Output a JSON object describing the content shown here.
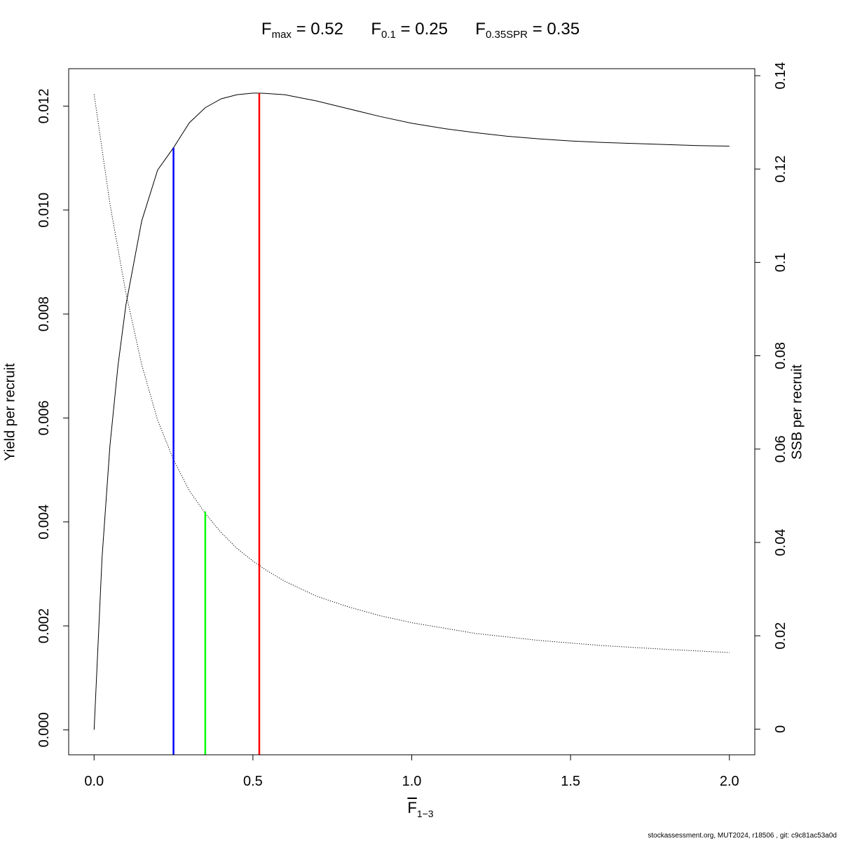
{
  "title": {
    "fmax_main": "F",
    "fmax_sub": "max",
    "fmax_value": "= 0.52",
    "f01_main": "F",
    "f01_sub": "0.1",
    "f01_value": "= 0.25",
    "fspr_main": "F",
    "fspr_sub": "0.35SPR",
    "fspr_value": "= 0.35"
  },
  "footer": "stockassessment.org, MUT2024, r18506 , git: c9c81ac53a0d",
  "chart_data": {
    "type": "line",
    "xlabel": {
      "main": "F",
      "sub": "1−3"
    },
    "ylabel_left": "Yield per recruit",
    "ylabel_right": "SSB per recruit",
    "xlim": [
      -0.08,
      2.08
    ],
    "ylim_left": [
      -0.00048,
      0.01272
    ],
    "ylim_right": [
      -0.0055,
      0.1415
    ],
    "x_ticks": [
      0.0,
      0.5,
      1.0,
      1.5,
      2.0
    ],
    "x_tick_labels": [
      "0.0",
      "0.5",
      "1.0",
      "1.5",
      "2.0"
    ],
    "y_left_ticks": [
      0.0,
      0.002,
      0.004,
      0.006,
      0.008,
      0.01,
      0.012
    ],
    "y_left_tick_labels": [
      "0.000",
      "0.002",
      "0.004",
      "0.006",
      "0.008",
      "0.010",
      "0.012"
    ],
    "y_right_ticks": [
      0,
      0.02,
      0.04,
      0.06,
      0.08,
      0.1,
      0.12,
      0.14
    ],
    "y_right_tick_labels": [
      "0",
      "0.02",
      "0.04",
      "0.06",
      "0.08",
      "0.1",
      "0.12",
      "0.14"
    ],
    "series": [
      {
        "style": "solid",
        "color": "#000000",
        "axis": "left",
        "x": [
          0.0,
          0.025,
          0.05,
          0.075,
          0.1,
          0.15,
          0.2,
          0.25,
          0.3,
          0.35,
          0.4,
          0.45,
          0.5,
          0.52,
          0.55,
          0.6,
          0.7,
          0.8,
          0.9,
          1.0,
          1.1,
          1.2,
          1.3,
          1.4,
          1.5,
          1.6,
          1.7,
          1.8,
          1.9,
          2.0
        ],
        "y": [
          0.0,
          0.00331,
          0.00547,
          0.007,
          0.00817,
          0.00979,
          0.01077,
          0.0112,
          0.01168,
          0.01197,
          0.01214,
          0.01222,
          0.01225,
          0.01225,
          0.01224,
          0.01222,
          0.0121,
          0.01195,
          0.0118,
          0.01167,
          0.01157,
          0.01149,
          0.01142,
          0.01137,
          0.01133,
          0.0113,
          0.01128,
          0.01126,
          0.01124,
          0.01123
        ]
      },
      {
        "style": "dotted",
        "color": "#000000",
        "axis": "right",
        "x": [
          0.0,
          0.05,
          0.1,
          0.15,
          0.2,
          0.25,
          0.3,
          0.35,
          0.4,
          0.45,
          0.5,
          0.55,
          0.6,
          0.7,
          0.8,
          0.9,
          1.0,
          1.2,
          1.4,
          1.6,
          1.8,
          2.0
        ],
        "y": [
          0.136,
          0.1125,
          0.0935,
          0.0781,
          0.0662,
          0.0577,
          0.0511,
          0.0462,
          0.0421,
          0.0387,
          0.036,
          0.0337,
          0.0317,
          0.0285,
          0.0262,
          0.0243,
          0.0228,
          0.0205,
          0.019,
          0.0179,
          0.0171,
          0.0164
        ]
      }
    ],
    "reference_lines": [
      {
        "name": "F0.1",
        "x": 0.25,
        "y_top": 0.0112,
        "color": "#0000ff"
      },
      {
        "name": "F0.35SPR",
        "x": 0.35,
        "y_top": 0.0042,
        "color": "#00ff00"
      },
      {
        "name": "Fmax",
        "x": 0.52,
        "y_top": 0.01225,
        "color": "#ff0000"
      }
    ]
  }
}
